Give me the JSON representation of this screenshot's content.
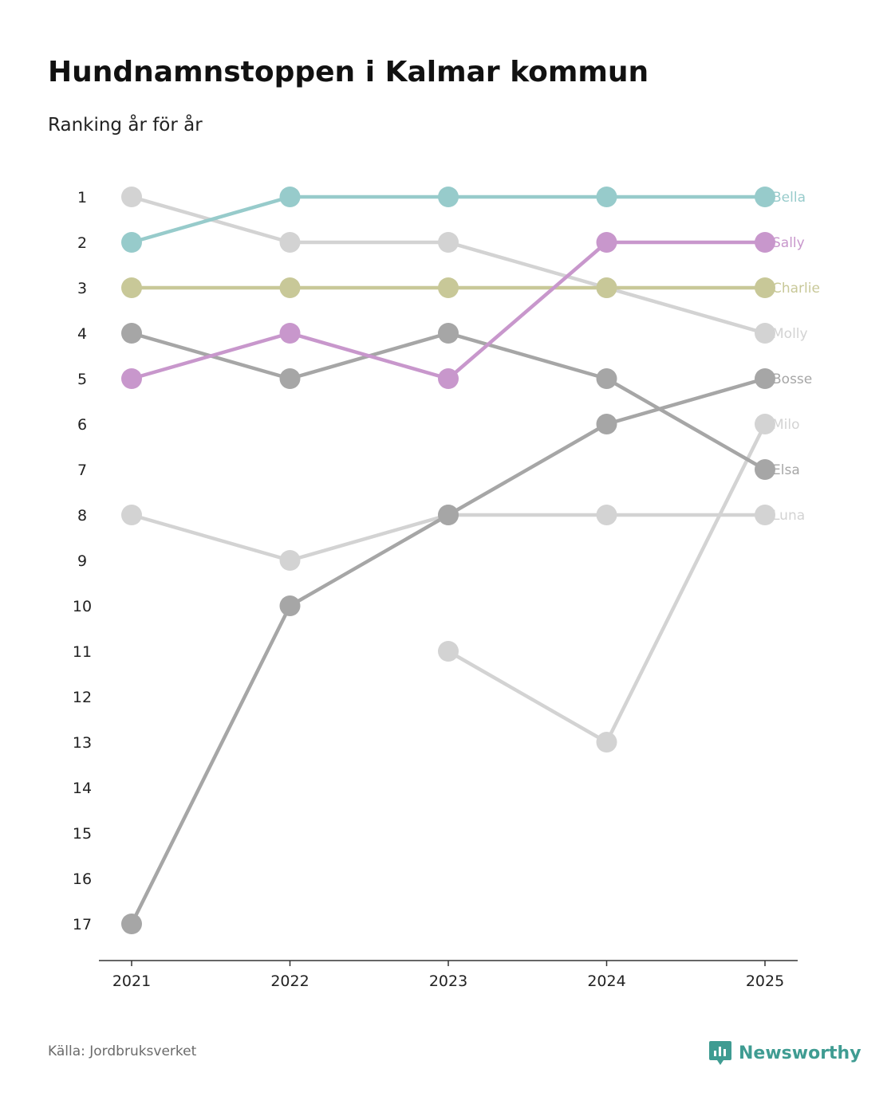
{
  "header": {
    "title": "Hundnamnstoppen i Kalmar kommun",
    "subtitle": "Ranking år för år"
  },
  "footer": {
    "source": "Källa: Jordbruksverket",
    "brand": "Newsworthy",
    "brand_color": "#3f9c92"
  },
  "chart_data": {
    "type": "line",
    "title": "Hundnamnstoppen i Kalmar kommun",
    "subtitle": "Ranking år för år",
    "xlabel": "",
    "ylabel": "",
    "x": [
      "2021",
      "2022",
      "2023",
      "2024",
      "2025"
    ],
    "y_ticks": [
      "1",
      "2",
      "3",
      "4",
      "5",
      "6",
      "7",
      "8",
      "9",
      "10",
      "11",
      "12",
      "13",
      "14",
      "15",
      "16",
      "17"
    ],
    "ylim": [
      1,
      17
    ],
    "y_inverted": true,
    "grid": false,
    "legend": "labels at line ends (right)",
    "series": [
      {
        "name": "Molly",
        "color": "#d3d3d3",
        "values": [
          1,
          2,
          2,
          3,
          4
        ]
      },
      {
        "name": "Luna",
        "color": "#d3d3d3",
        "values": [
          8,
          9,
          8,
          8,
          8
        ]
      },
      {
        "name": "Milo",
        "color": "#d3d3d3",
        "values": [
          null,
          null,
          11,
          13,
          6
        ]
      },
      {
        "name": "Elsa",
        "color": "#a6a6a6",
        "values": [
          4,
          5,
          4,
          5,
          7
        ]
      },
      {
        "name": "Bosse",
        "color": "#a6a6a6",
        "values": [
          17,
          10,
          8,
          6,
          5
        ]
      },
      {
        "name": "Charlie",
        "color": "#c8c898",
        "values": [
          3,
          3,
          3,
          3,
          3
        ]
      },
      {
        "name": "Sally",
        "color": "#c897cc",
        "values": [
          5,
          4,
          5,
          2,
          2
        ]
      },
      {
        "name": "Bella",
        "color": "#97cbcb",
        "values": [
          2,
          1,
          1,
          1,
          1
        ]
      }
    ]
  }
}
